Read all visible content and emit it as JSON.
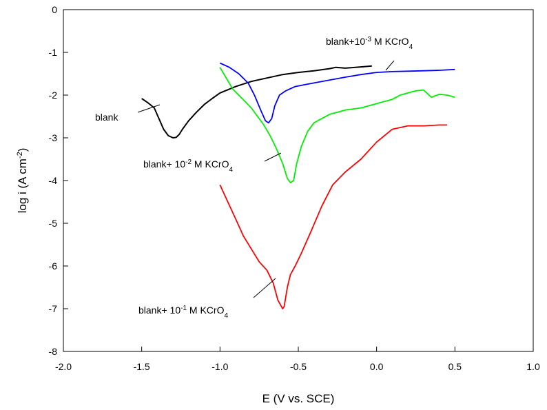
{
  "chart_data": {
    "type": "line",
    "xlabel": "E (V vs. SCE)",
    "ylabel_main": "log i (A cm",
    "ylabel_sup": "-2",
    "ylabel_close": ")",
    "xlim": [
      -2.0,
      1.0
    ],
    "ylim": [
      -8,
      0
    ],
    "x_ticks": [
      -2.0,
      -1.5,
      -1.0,
      -0.5,
      0.0,
      0.5,
      1.0
    ],
    "x_tick_labels": [
      "-2.0",
      "-1.5",
      "-1.0",
      "-0.5",
      "0.0",
      "0.5",
      "1.0"
    ],
    "y_ticks": [
      0,
      -1,
      -2,
      -3,
      -4,
      -5,
      -6,
      -7,
      -8
    ],
    "y_tick_labels": [
      "0",
      "-1",
      "-2",
      "-3",
      "-4",
      "-5",
      "-6",
      "-7",
      "-8"
    ],
    "grid": false,
    "legend": "none",
    "series": [
      {
        "name": "blank",
        "color": "#000000",
        "x": [
          -1.5,
          -1.46,
          -1.42,
          -1.39,
          -1.36,
          -1.33,
          -1.3,
          -1.28,
          -1.26,
          -1.24,
          -1.2,
          -1.15,
          -1.1,
          -1.05,
          -1.0,
          -0.9,
          -0.8,
          -0.7,
          -0.6,
          -0.5,
          -0.4,
          -0.3,
          -0.26,
          -0.2,
          -0.1,
          -0.03
        ],
        "y": [
          -2.08,
          -2.18,
          -2.3,
          -2.55,
          -2.8,
          -2.95,
          -3.0,
          -2.99,
          -2.92,
          -2.8,
          -2.6,
          -2.4,
          -2.22,
          -2.08,
          -1.95,
          -1.8,
          -1.68,
          -1.6,
          -1.52,
          -1.47,
          -1.43,
          -1.38,
          -1.35,
          -1.37,
          -1.34,
          -1.32
        ]
      },
      {
        "name": "blank+10-3 M KCrO4",
        "color": "#0000ff",
        "x": [
          -1.0,
          -0.94,
          -0.88,
          -0.82,
          -0.78,
          -0.74,
          -0.71,
          -0.69,
          -0.67,
          -0.65,
          -0.62,
          -0.58,
          -0.52,
          -0.45,
          -0.35,
          -0.2,
          -0.1,
          0.0,
          0.1,
          0.2,
          0.3,
          0.4,
          0.5
        ],
        "y": [
          -1.25,
          -1.35,
          -1.5,
          -1.72,
          -2.0,
          -2.35,
          -2.6,
          -2.65,
          -2.55,
          -2.25,
          -2.0,
          -1.9,
          -1.8,
          -1.75,
          -1.68,
          -1.58,
          -1.52,
          -1.47,
          -1.45,
          -1.44,
          -1.43,
          -1.42,
          -1.4
        ]
      },
      {
        "name": "blank+ 10-2 M KCrO4",
        "color": "#00ee00",
        "x": [
          -1.0,
          -0.96,
          -0.92,
          -0.88,
          -0.84,
          -0.8,
          -0.76,
          -0.72,
          -0.68,
          -0.64,
          -0.6,
          -0.57,
          -0.55,
          -0.53,
          -0.51,
          -0.48,
          -0.44,
          -0.4,
          -0.35,
          -0.3,
          -0.2,
          -0.1,
          -0.05,
          0.0,
          0.05,
          0.1,
          0.15,
          0.2,
          0.25,
          0.3,
          0.35,
          0.4,
          0.45,
          0.5
        ],
        "y": [
          -1.35,
          -1.6,
          -1.85,
          -2.0,
          -2.15,
          -2.3,
          -2.5,
          -2.7,
          -2.95,
          -3.25,
          -3.6,
          -3.95,
          -4.05,
          -4.0,
          -3.6,
          -3.2,
          -2.85,
          -2.65,
          -2.55,
          -2.45,
          -2.35,
          -2.3,
          -2.25,
          -2.2,
          -2.15,
          -2.1,
          -2.0,
          -1.95,
          -1.9,
          -1.88,
          -2.05,
          -1.98,
          -2.0,
          -2.05
        ]
      },
      {
        "name": "blank+ 10-1 M KCrO4",
        "color": "#ff0000",
        "x": [
          -1.0,
          -0.95,
          -0.9,
          -0.85,
          -0.8,
          -0.75,
          -0.7,
          -0.66,
          -0.63,
          -0.6,
          -0.59,
          -0.57,
          -0.55,
          -0.52,
          -0.48,
          -0.42,
          -0.35,
          -0.28,
          -0.2,
          -0.1,
          0.0,
          0.1,
          0.2,
          0.3,
          0.4,
          0.45
        ],
        "y": [
          -4.1,
          -4.5,
          -4.9,
          -5.3,
          -5.6,
          -5.9,
          -6.1,
          -6.4,
          -6.8,
          -7.0,
          -6.95,
          -6.5,
          -6.2,
          -6.0,
          -5.7,
          -5.2,
          -4.6,
          -4.1,
          -3.8,
          -3.5,
          -3.1,
          -2.8,
          -2.72,
          -2.72,
          -2.7,
          -2.7
        ]
      }
    ],
    "annotations": [
      {
        "name": "blank",
        "base": "blank",
        "exp": "",
        "tail": ""
      },
      {
        "name": "blank-3",
        "base": "blank+10",
        "exp": "-3",
        "tail": " M KCrO",
        "sub": "4"
      },
      {
        "name": "blank-2",
        "base": "blank+ 10",
        "exp": "-2",
        "tail": " M KCrO",
        "sub": "4"
      },
      {
        "name": "blank-1",
        "base": "blank+ 10",
        "exp": "-1",
        "tail": " M KCrO",
        "sub": "4"
      }
    ]
  }
}
